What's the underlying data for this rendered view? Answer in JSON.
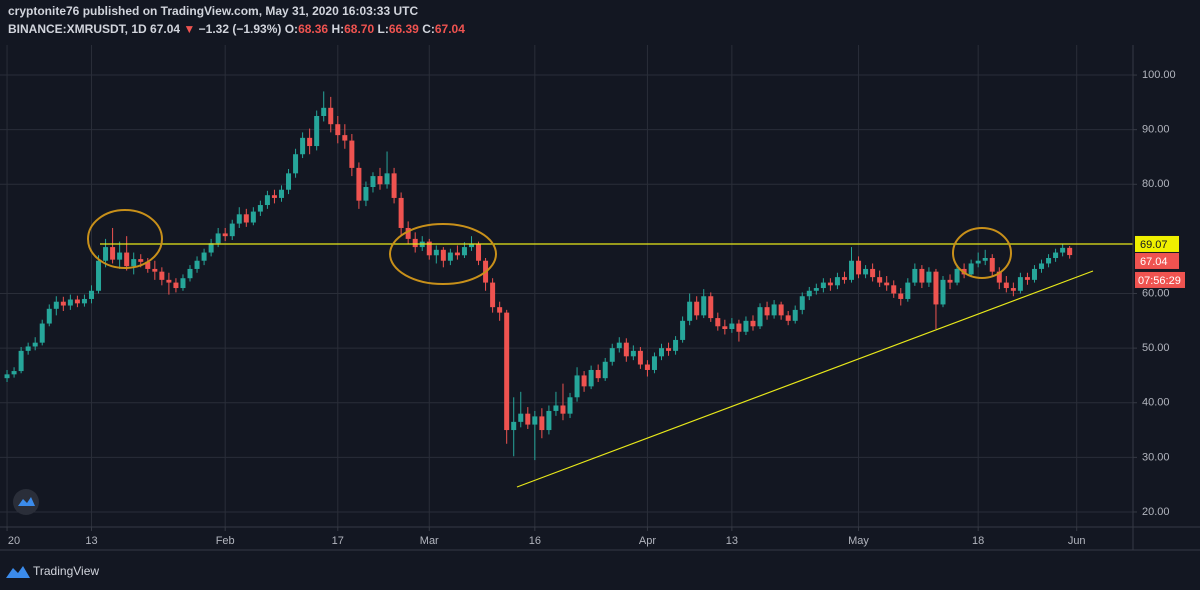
{
  "header": {
    "publisher": "cryptonite76 published on TradingView.com, May 31, 2020 16:03:33 UTC",
    "symbol": "BINANCE:XMRUSDT, 1D",
    "last": "67.04",
    "arrow": "▼",
    "change": "−1.32 (−1.93%)",
    "ohlc": [
      {
        "label": "O:",
        "value": "68.36"
      },
      {
        "label": "H:",
        "value": "68.70"
      },
      {
        "label": "L:",
        "value": "66.39"
      },
      {
        "label": "C:",
        "value": "67.04"
      }
    ],
    "countdown": "07:56:29"
  },
  "footer": {
    "brand": "TradingView"
  },
  "chart_data": {
    "type": "candlestick",
    "up_color": "#26a69a",
    "down_color": "#ef5350",
    "level": 69.07,
    "level_color": "#e8e81a",
    "grid": true,
    "xlim": [
      "2019-12-31",
      "2020-06-09"
    ],
    "xticks": [
      {
        "value": "2020-01-01",
        "label": "20"
      },
      {
        "value": "2020-01-13",
        "label": "13"
      },
      {
        "value": "2020-02-01",
        "label": "Feb"
      },
      {
        "value": "2020-02-17",
        "label": "17"
      },
      {
        "value": "2020-03-01",
        "label": "Mar"
      },
      {
        "value": "2020-03-16",
        "label": "16"
      },
      {
        "value": "2020-04-01",
        "label": "Apr"
      },
      {
        "value": "2020-04-13",
        "label": "13"
      },
      {
        "value": "2020-05-01",
        "label": "May"
      },
      {
        "value": "2020-05-18",
        "label": "18"
      },
      {
        "value": "2020-06-01",
        "label": "Jun"
      }
    ],
    "ylim": [
      17.25,
      105.5
    ],
    "yticks": [
      {
        "value": 20,
        "label": "20.00"
      },
      {
        "value": 30,
        "label": "30.00"
      },
      {
        "value": 40,
        "label": "40.00"
      },
      {
        "value": 50,
        "label": "50.00"
      },
      {
        "value": 60,
        "label": "60.00"
      },
      {
        "value": 80,
        "label": "80.00"
      },
      {
        "value": 90,
        "label": "90.00"
      },
      {
        "value": 100,
        "label": "100.00"
      }
    ],
    "x": [
      "2020-01-01",
      "2020-01-02",
      "2020-01-03",
      "2020-01-04",
      "2020-01-05",
      "2020-01-06",
      "2020-01-07",
      "2020-01-08",
      "2020-01-09",
      "2020-01-10",
      "2020-01-11",
      "2020-01-12",
      "2020-01-13",
      "2020-01-14",
      "2020-01-15",
      "2020-01-16",
      "2020-01-17",
      "2020-01-18",
      "2020-01-19",
      "2020-01-20",
      "2020-01-21",
      "2020-01-22",
      "2020-01-23",
      "2020-01-24",
      "2020-01-25",
      "2020-01-26",
      "2020-01-27",
      "2020-01-28",
      "2020-01-29",
      "2020-01-30",
      "2020-01-31",
      "2020-02-01",
      "2020-02-02",
      "2020-02-03",
      "2020-02-04",
      "2020-02-05",
      "2020-02-06",
      "2020-02-07",
      "2020-02-08",
      "2020-02-09",
      "2020-02-10",
      "2020-02-11",
      "2020-02-12",
      "2020-02-13",
      "2020-02-14",
      "2020-02-15",
      "2020-02-16",
      "2020-02-17",
      "2020-02-18",
      "2020-02-19",
      "2020-02-20",
      "2020-02-21",
      "2020-02-22",
      "2020-02-23",
      "2020-02-24",
      "2020-02-25",
      "2020-02-26",
      "2020-02-27",
      "2020-02-28",
      "2020-02-29",
      "2020-03-01",
      "2020-03-02",
      "2020-03-03",
      "2020-03-04",
      "2020-03-05",
      "2020-03-06",
      "2020-03-07",
      "2020-03-08",
      "2020-03-09",
      "2020-03-10",
      "2020-03-11",
      "2020-03-12",
      "2020-03-13",
      "2020-03-14",
      "2020-03-15",
      "2020-03-16",
      "2020-03-17",
      "2020-03-18",
      "2020-03-19",
      "2020-03-20",
      "2020-03-21",
      "2020-03-22",
      "2020-03-23",
      "2020-03-24",
      "2020-03-25",
      "2020-03-26",
      "2020-03-27",
      "2020-03-28",
      "2020-03-29",
      "2020-03-30",
      "2020-03-31",
      "2020-04-01",
      "2020-04-02",
      "2020-04-03",
      "2020-04-04",
      "2020-04-05",
      "2020-04-06",
      "2020-04-07",
      "2020-04-08",
      "2020-04-09",
      "2020-04-10",
      "2020-04-11",
      "2020-04-12",
      "2020-04-13",
      "2020-04-14",
      "2020-04-15",
      "2020-04-16",
      "2020-04-17",
      "2020-04-18",
      "2020-04-19",
      "2020-04-20",
      "2020-04-21",
      "2020-04-22",
      "2020-04-23",
      "2020-04-24",
      "2020-04-25",
      "2020-04-26",
      "2020-04-27",
      "2020-04-28",
      "2020-04-29",
      "2020-04-30",
      "2020-05-01",
      "2020-05-02",
      "2020-05-03",
      "2020-05-04",
      "2020-05-05",
      "2020-05-06",
      "2020-05-07",
      "2020-05-08",
      "2020-05-09",
      "2020-05-10",
      "2020-05-11",
      "2020-05-12",
      "2020-05-13",
      "2020-05-14",
      "2020-05-15",
      "2020-05-16",
      "2020-05-17",
      "2020-05-18",
      "2020-05-19",
      "2020-05-20",
      "2020-05-21",
      "2020-05-22",
      "2020-05-23",
      "2020-05-24",
      "2020-05-25",
      "2020-05-26",
      "2020-05-27",
      "2020-05-28",
      "2020-05-29",
      "2020-05-30",
      "2020-05-31"
    ],
    "open": [
      44.5,
      45.2,
      45.8,
      49.5,
      50.3,
      51.0,
      54.5,
      57.2,
      58.5,
      57.8,
      58.9,
      58.2,
      59.0,
      60.5,
      66.0,
      68.5,
      66.2,
      67.5,
      65.0,
      66.3,
      65.8,
      64.5,
      64.0,
      62.5,
      62.0,
      61.0,
      62.8,
      64.5,
      66.0,
      67.5,
      69.2,
      71.0,
      70.5,
      72.8,
      74.5,
      73.0,
      75.0,
      76.2,
      78.0,
      77.5,
      79.0,
      82.0,
      85.5,
      88.5,
      87.0,
      92.5,
      94.0,
      91.0,
      89.0,
      88.0,
      83.0,
      77.0,
      79.5,
      81.5,
      80.0,
      82.0,
      77.5,
      72.0,
      70.0,
      68.5,
      69.5,
      67.0,
      68.0,
      66.0,
      67.5,
      67.0,
      68.5,
      69.0,
      66.0,
      62.0,
      57.5,
      56.5,
      35.0,
      36.5,
      38.0,
      36.0,
      37.5,
      35.0,
      38.5,
      39.5,
      38.0,
      41.0,
      45.0,
      43.0,
      46.0,
      44.5,
      47.5,
      50.0,
      51.0,
      48.5,
      49.5,
      47.0,
      46.0,
      48.5,
      50.0,
      49.5,
      51.5,
      55.0,
      58.5,
      56.0,
      59.5,
      55.5,
      54.0,
      53.5,
      54.5,
      53.0,
      55.0,
      54.0,
      57.5,
      56.0,
      58.0,
      56.0,
      55.0,
      57.0,
      59.5,
      60.5,
      61.0,
      62.0,
      61.5,
      63.0,
      62.5,
      66.0,
      63.5,
      64.5,
      63.0,
      62.0,
      61.5,
      60.0,
      59.0,
      62.0,
      64.5,
      62.0,
      64.0,
      58.0,
      62.5,
      62.0,
      64.5,
      63.5,
      65.5,
      66.0,
      66.5,
      64.0,
      62.0,
      61.0,
      60.5,
      63.0,
      62.5,
      64.5,
      65.5,
      66.5,
      67.5,
      68.36
    ],
    "high": [
      46.0,
      46.5,
      50.2,
      51.0,
      52.0,
      55.2,
      58.0,
      59.5,
      59.4,
      59.8,
      59.6,
      59.8,
      61.5,
      67.0,
      70.0,
      72.0,
      69.5,
      70.5,
      67.5,
      67.2,
      66.5,
      66.0,
      64.8,
      63.8,
      62.8,
      63.5,
      65.2,
      66.8,
      68.2,
      70.0,
      72.0,
      72.0,
      73.5,
      75.8,
      75.5,
      75.8,
      77.0,
      78.8,
      79.0,
      79.8,
      82.8,
      86.5,
      89.5,
      90.2,
      93.5,
      97.0,
      96.0,
      92.5,
      91.0,
      89.2,
      84.0,
      80.5,
      82.2,
      83.0,
      86.0,
      83.0,
      78.5,
      73.2,
      71.2,
      70.5,
      70.0,
      68.8,
      68.5,
      68.2,
      68.8,
      69.4,
      70.5,
      69.5,
      66.5,
      62.8,
      58.5,
      57.0,
      41.0,
      42.0,
      39.2,
      38.5,
      39.0,
      39.5,
      42.0,
      43.5,
      41.8,
      46.5,
      45.8,
      46.8,
      47.0,
      48.2,
      50.8,
      52.0,
      51.8,
      50.5,
      50.2,
      47.8,
      49.2,
      50.8,
      51.0,
      52.2,
      55.8,
      60.0,
      59.5,
      60.8,
      60.2,
      56.5,
      55.2,
      55.5,
      55.2,
      55.8,
      56.0,
      58.2,
      58.5,
      58.8,
      58.5,
      56.8,
      57.8,
      60.2,
      61.2,
      61.8,
      62.8,
      62.8,
      63.8,
      64.0,
      68.5,
      66.8,
      65.2,
      65.5,
      64.2,
      63.2,
      62.4,
      61.0,
      62.8,
      65.5,
      65.2,
      64.8,
      64.5,
      63.2,
      63.5,
      65.2,
      65.5,
      66.2,
      67.5,
      68.0,
      67.2,
      64.8,
      63.2,
      62.0,
      63.8,
      63.8,
      65.2,
      66.2,
      67.2,
      68.2,
      69.0,
      68.7
    ],
    "low": [
      43.8,
      44.6,
      45.4,
      48.8,
      49.6,
      50.5,
      54.0,
      56.0,
      56.8,
      57.0,
      57.5,
      57.6,
      58.2,
      60.0,
      64.8,
      65.5,
      64.5,
      64.2,
      63.5,
      64.8,
      63.8,
      62.5,
      61.5,
      59.8,
      60.2,
      60.5,
      62.2,
      63.8,
      65.2,
      66.8,
      68.5,
      69.6,
      69.8,
      72.0,
      72.2,
      72.5,
      74.2,
      75.5,
      76.5,
      76.8,
      78.2,
      81.2,
      84.8,
      85.5,
      86.2,
      91.5,
      89.5,
      87.5,
      86.5,
      81.5,
      75.5,
      76.0,
      78.5,
      79.0,
      79.2,
      76.5,
      70.5,
      69.0,
      67.5,
      67.8,
      66.2,
      65.5,
      64.8,
      65.2,
      66.2,
      66.5,
      67.8,
      65.2,
      60.5,
      56.5,
      55.0,
      32.5,
      30.2,
      35.5,
      35.2,
      29.5,
      33.5,
      34.2,
      37.6,
      36.8,
      37.2,
      40.2,
      42.0,
      42.5,
      43.8,
      44.0,
      46.8,
      49.2,
      47.5,
      47.8,
      46.2,
      44.8,
      45.4,
      47.8,
      48.6,
      48.8,
      51.0,
      54.2,
      55.2,
      55.5,
      54.8,
      53.2,
      52.5,
      52.8,
      51.2,
      52.4,
      53.2,
      53.5,
      55.2,
      55.4,
      55.2,
      54.2,
      54.5,
      56.2,
      58.8,
      59.8,
      60.2,
      60.5,
      60.8,
      61.8,
      62.0,
      62.8,
      62.8,
      62.2,
      61.2,
      60.5,
      59.2,
      57.8,
      58.5,
      61.4,
      61.0,
      61.2,
      53.5,
      57.5,
      60.8,
      61.5,
      62.8,
      63.0,
      64.8,
      65.2,
      63.2,
      60.8,
      60.2,
      59.5,
      60.0,
      61.6,
      62.0,
      63.8,
      64.8,
      65.8,
      66.8,
      66.39
    ],
    "close": [
      45.2,
      45.8,
      49.5,
      50.3,
      51.0,
      54.5,
      57.2,
      58.5,
      57.8,
      58.9,
      58.2,
      59.0,
      60.5,
      66.0,
      68.5,
      66.2,
      67.5,
      65.0,
      66.3,
      65.8,
      64.5,
      64.0,
      62.5,
      62.0,
      61.0,
      62.8,
      64.5,
      66.0,
      67.5,
      69.2,
      71.0,
      70.5,
      72.8,
      74.5,
      73.0,
      75.0,
      76.2,
      78.0,
      77.5,
      79.0,
      82.0,
      85.5,
      88.5,
      87.0,
      92.5,
      94.0,
      91.0,
      89.0,
      88.0,
      83.0,
      77.0,
      79.5,
      81.5,
      80.0,
      82.0,
      77.5,
      72.0,
      70.0,
      68.5,
      69.5,
      67.0,
      68.0,
      66.0,
      67.5,
      67.0,
      68.5,
      69.0,
      66.0,
      62.0,
      57.5,
      56.5,
      35.0,
      36.5,
      38.0,
      36.0,
      37.5,
      35.0,
      38.5,
      39.5,
      38.0,
      41.0,
      45.0,
      43.0,
      46.0,
      44.5,
      47.5,
      50.0,
      51.0,
      48.5,
      49.5,
      47.0,
      46.0,
      48.5,
      50.0,
      49.5,
      51.5,
      55.0,
      58.5,
      56.0,
      59.5,
      55.5,
      54.0,
      53.5,
      54.5,
      53.0,
      55.0,
      54.0,
      57.5,
      56.0,
      58.0,
      56.0,
      55.0,
      57.0,
      59.5,
      60.5,
      61.0,
      62.0,
      61.5,
      63.0,
      62.5,
      66.0,
      63.5,
      64.5,
      63.0,
      62.0,
      61.5,
      60.0,
      59.0,
      62.0,
      64.5,
      62.0,
      64.0,
      58.0,
      62.5,
      62.0,
      64.5,
      63.5,
      65.5,
      66.0,
      66.5,
      64.0,
      62.0,
      61.0,
      60.5,
      63.0,
      62.5,
      64.5,
      65.5,
      66.5,
      67.5,
      68.36,
      67.04
    ]
  }
}
